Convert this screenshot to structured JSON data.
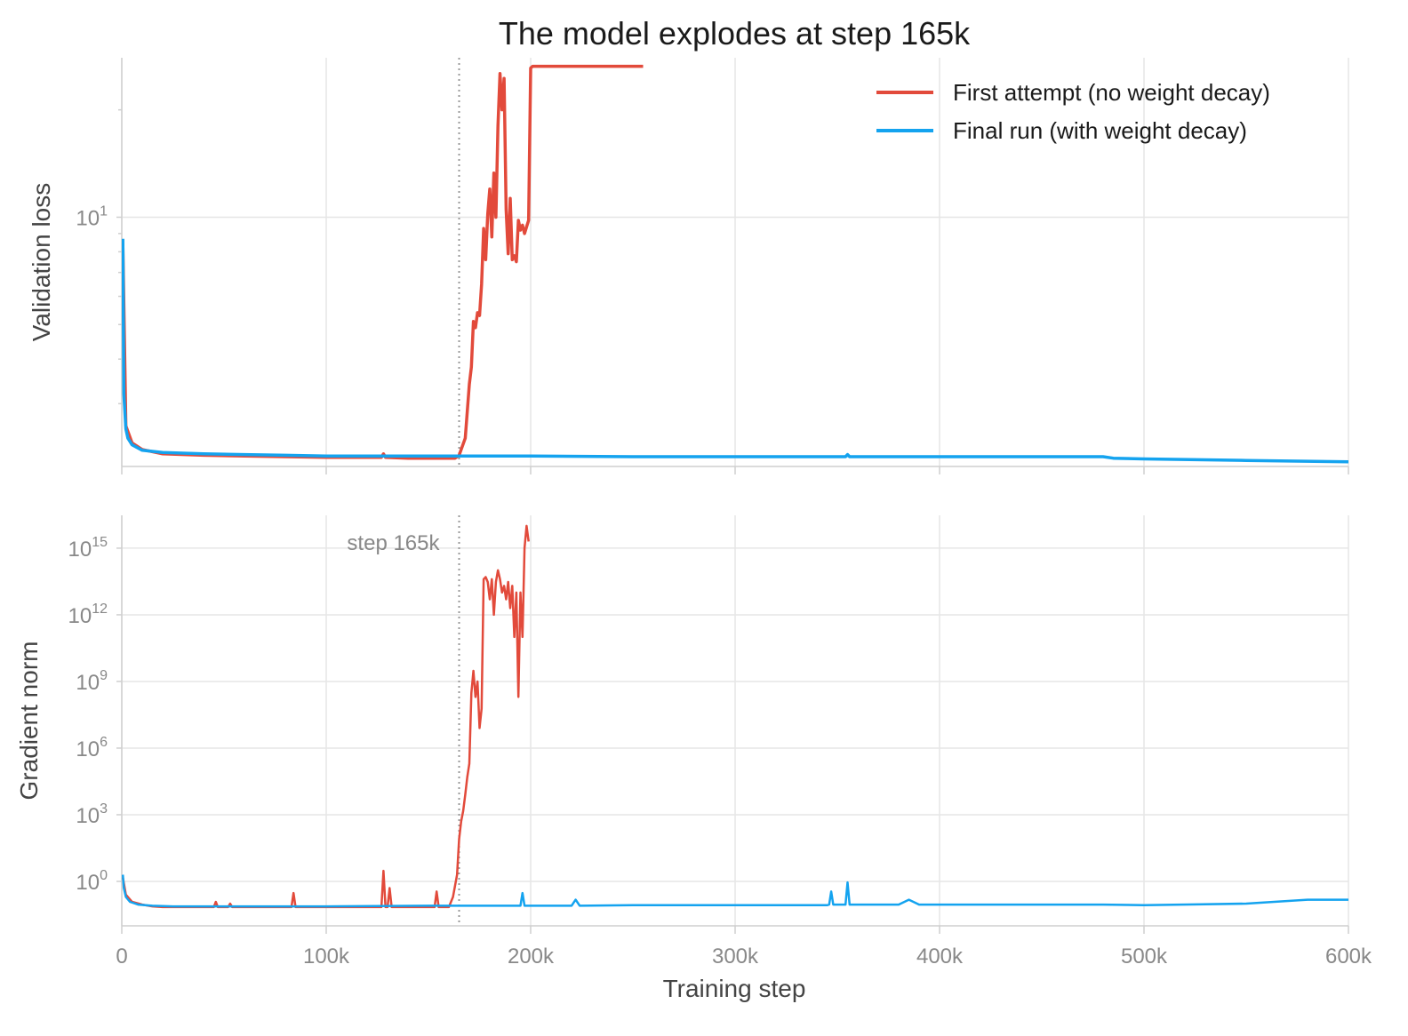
{
  "chart_data": {
    "title": "The model explodes at step 165k",
    "xlabel": "Training step",
    "x_ticks": [
      0,
      100000,
      200000,
      300000,
      400000,
      500000,
      600000
    ],
    "x_tick_labels": [
      "0",
      "100k",
      "200k",
      "300k",
      "400k",
      "500k",
      "600k"
    ],
    "xlim": [
      0,
      600000
    ],
    "grid": true,
    "legend_position": "top-right",
    "vline": {
      "x": 165000,
      "label": "step 165k",
      "style": "dotted"
    },
    "colors": {
      "first": "#e24a3b",
      "final": "#14a3ef",
      "vline": "#999999"
    },
    "panels": [
      {
        "type": "line",
        "ylabel": "Validation loss",
        "yscale": "log",
        "ylim": [
          2.0,
          28
        ],
        "y_ticks": [
          {
            "value": 10,
            "base": "10",
            "exp": "1"
          }
        ],
        "minor_ticks": [
          3,
          4,
          5,
          6,
          7,
          8,
          9,
          20
        ],
        "series": [
          {
            "name": "First attempt (no weight decay)",
            "color": "#e24a3b",
            "x": [
              500,
              2000,
              5000,
              10000,
              20000,
              40000,
              60000,
              80000,
              100000,
              120000,
              127000,
              128000,
              129000,
              140000,
              155000,
              163000,
              165000,
              168000,
              170000,
              171000,
              172000,
              173000,
              174000,
              175000,
              176000,
              177000,
              178000,
              179000,
              180000,
              181000,
              182000,
              183000,
              184000,
              185000,
              186000,
              187000,
              188000,
              189000,
              190000,
              191000,
              192000,
              193000,
              194000,
              195000,
              196000,
              197000,
              198000,
              199000,
              200000,
              201000,
              205000,
              230000,
              255000
            ],
            "values": [
              8.4,
              2.6,
              2.33,
              2.23,
              2.17,
              2.15,
              2.14,
              2.13,
              2.12,
              2.12,
              2.12,
              2.17,
              2.12,
              2.11,
              2.11,
              2.11,
              2.15,
              2.4,
              3.4,
              3.8,
              5.1,
              4.9,
              5.4,
              5.3,
              6.5,
              9.3,
              7.6,
              10.2,
              12.0,
              8.8,
              13.3,
              10.0,
              18.0,
              25.3,
              20.0,
              24.5,
              10.5,
              7.9,
              11.3,
              7.6,
              7.8,
              7.5,
              9.8,
              9.2,
              9.5,
              9.0,
              9.4,
              9.8,
              26.2,
              26.5,
              26.5,
              26.5,
              26.5
            ]
          },
          {
            "name": "Final run (with weight decay)",
            "color": "#14a3ef",
            "x": [
              500,
              1000,
              2000,
              3000,
              5000,
              10000,
              20000,
              40000,
              60000,
              80000,
              100000,
              130000,
              160000,
              200000,
              250000,
              300000,
              350000,
              354000,
              355000,
              356000,
              400000,
              450000,
              480000,
              485000,
              500000,
              550000,
              600000
            ],
            "values": [
              8.7,
              3.2,
              2.55,
              2.4,
              2.3,
              2.22,
              2.19,
              2.17,
              2.16,
              2.15,
              2.14,
              2.14,
              2.14,
              2.14,
              2.13,
              2.13,
              2.13,
              2.13,
              2.16,
              2.13,
              2.13,
              2.13,
              2.13,
              2.11,
              2.1,
              2.08,
              2.06
            ]
          }
        ]
      },
      {
        "type": "line",
        "ylabel": "Gradient norm",
        "yscale": "log",
        "ylim": [
          0.01,
          3e+16
        ],
        "y_ticks": [
          {
            "value": 1,
            "base": "10",
            "exp": "0"
          },
          {
            "value": 1000,
            "base": "10",
            "exp": "3"
          },
          {
            "value": 1000000,
            "base": "10",
            "exp": "6"
          },
          {
            "value": 1000000000,
            "base": "10",
            "exp": "9"
          },
          {
            "value": 1000000000000,
            "base": "10",
            "exp": "12"
          },
          {
            "value": 1000000000000000,
            "base": "10",
            "exp": "15"
          }
        ],
        "series": [
          {
            "name": "First attempt (no weight decay)",
            "color": "#e24a3b",
            "x": [
              500,
              2000,
              5000,
              10000,
              15000,
              20000,
              30000,
              40000,
              45000,
              46000,
              47000,
              52000,
              53000,
              54000,
              60000,
              70000,
              83000,
              84000,
              85000,
              100000,
              115000,
              120000,
              127000,
              128000,
              129000,
              130000,
              131000,
              132000,
              140000,
              150000,
              153000,
              154000,
              155000,
              160000,
              162000,
              164000,
              165000,
              166000,
              167000,
              168000,
              169000,
              170000,
              171000,
              172000,
              173000,
              174000,
              175000,
              176000,
              177000,
              178000,
              179000,
              180000,
              181000,
              182000,
              183000,
              184000,
              185000,
              186000,
              187000,
              188000,
              189000,
              190000,
              191000,
              192000,
              193000,
              194000,
              195000,
              196000,
              197000,
              198000,
              199000
            ],
            "values": [
              1.5,
              0.25,
              0.12,
              0.09,
              0.075,
              0.07,
              0.07,
              0.07,
              0.07,
              0.12,
              0.07,
              0.07,
              0.1,
              0.07,
              0.07,
              0.07,
              0.07,
              0.3,
              0.07,
              0.07,
              0.07,
              0.07,
              0.07,
              3,
              0.07,
              0.07,
              0.5,
              0.07,
              0.07,
              0.07,
              0.07,
              0.35,
              0.07,
              0.07,
              0.2,
              2,
              80,
              500,
              1500,
              8000,
              50000,
              200000,
              300000000,
              3000000000,
              200000000,
              1000000000,
              8000000,
              60000000,
              40000000000000,
              50000000000000,
              30000000000000,
              5000000000000,
              40000000000000,
              1000000000000,
              30000000000000,
              100000000000000,
              40000000000000,
              10000000000000,
              20000000000000,
              5000000000000,
              30000000000000,
              2000000000000,
              20000000000000,
              100000000000,
              10000000000000,
              200000000,
              10000000000000,
              100000000000,
              1000000000000000,
              10000000000000000,
              2000000000000000
            ]
          },
          {
            "name": "Final run (with weight decay)",
            "color": "#14a3ef",
            "x": [
              500,
              1000,
              2000,
              4000,
              8000,
              15000,
              25000,
              50000,
              80000,
              100000,
              150000,
              195000,
              196000,
              197000,
              200000,
              220000,
              222000,
              224000,
              250000,
              300000,
              345000,
              346000,
              347000,
              348000,
              350000,
              354000,
              355000,
              356000,
              380000,
              385000,
              390000,
              450000,
              480000,
              500000,
              550000,
              580000,
              600000
            ],
            "values": [
              2.0,
              0.5,
              0.2,
              0.12,
              0.09,
              0.08,
              0.075,
              0.075,
              0.075,
              0.075,
              0.08,
              0.08,
              0.3,
              0.08,
              0.08,
              0.08,
              0.15,
              0.08,
              0.085,
              0.085,
              0.085,
              0.09,
              0.35,
              0.09,
              0.09,
              0.09,
              0.9,
              0.09,
              0.09,
              0.15,
              0.09,
              0.09,
              0.09,
              0.085,
              0.1,
              0.15,
              0.15
            ]
          }
        ]
      }
    ]
  }
}
